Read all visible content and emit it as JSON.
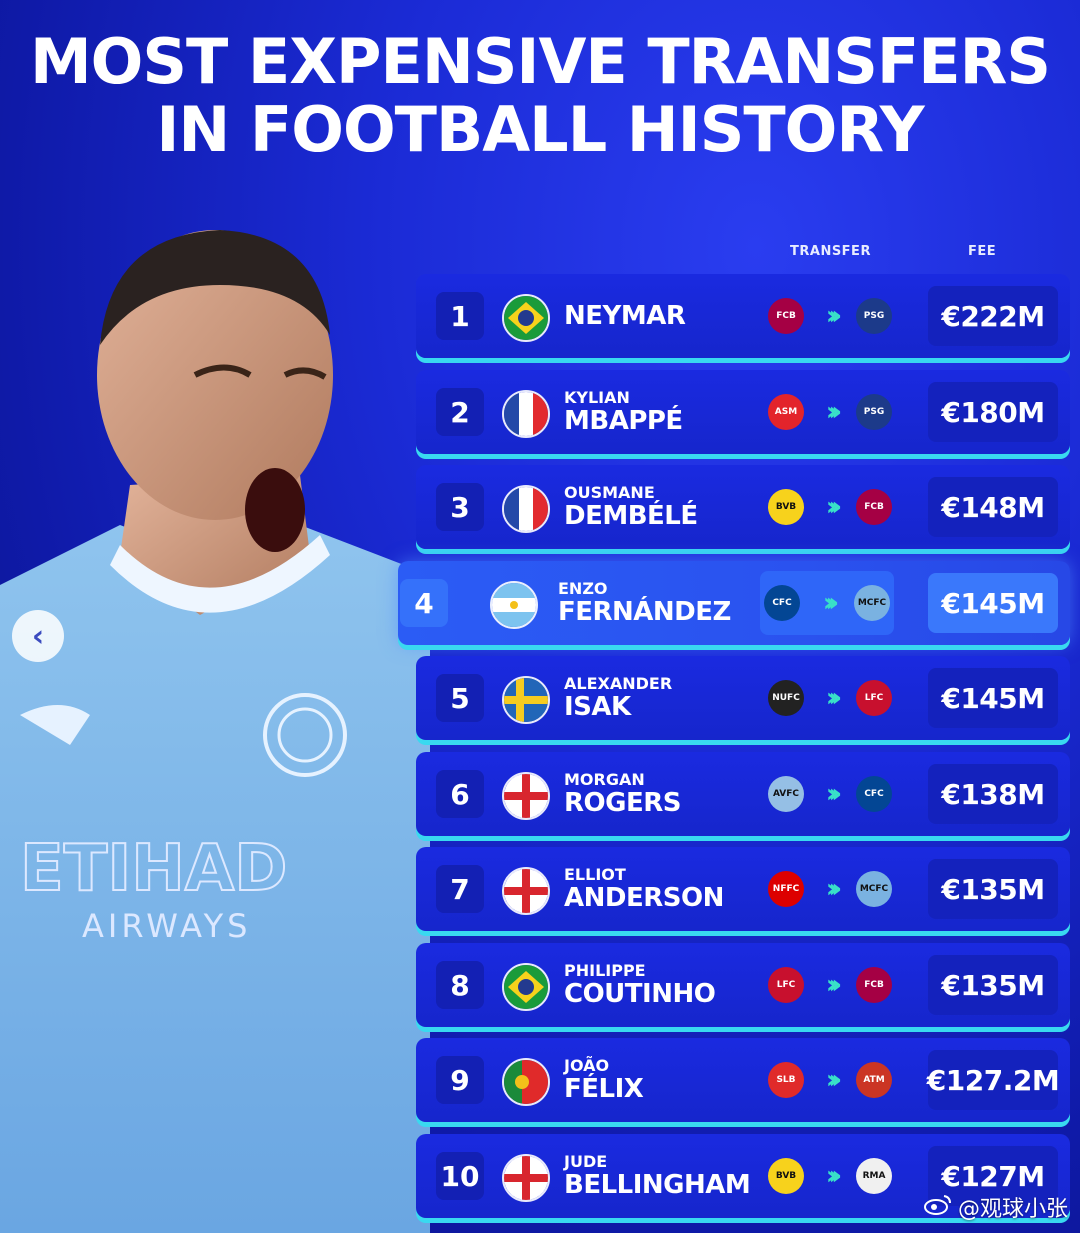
{
  "title": {
    "line1": "MOST EXPENSIVE TRANSFERS",
    "line2": "IN FOOTBALL HISTORY"
  },
  "columns": {
    "transfer": "TRANSFER",
    "fee": "FEE"
  },
  "sponsor": {
    "text": "ETIHAD",
    "sub": "AIRWAYS"
  },
  "accent": "#39d9f0",
  "rows": [
    {
      "rank": "1",
      "flag": "brazil",
      "first": "",
      "last": "NEYMAR",
      "from": "FCB",
      "to": "PSG",
      "fee": "€222M"
    },
    {
      "rank": "2",
      "flag": "france",
      "first": "KYLIAN",
      "last": "MBAPPÉ",
      "from": "ASM",
      "to": "PSG",
      "fee": "€180M"
    },
    {
      "rank": "3",
      "flag": "france",
      "first": "OUSMANE",
      "last": "DEMBÉLÉ",
      "from": "BVB",
      "to": "FCB",
      "fee": "€148M"
    },
    {
      "rank": "4",
      "flag": "argentina",
      "first": "ENZO",
      "last": "FERNÁNDEZ",
      "from": "CFC",
      "to": "MCFC",
      "fee": "€145M",
      "highlight": true
    },
    {
      "rank": "5",
      "flag": "sweden",
      "first": "ALEXANDER",
      "last": "ISAK",
      "from": "NUFC",
      "to": "LFC",
      "fee": "€145M"
    },
    {
      "rank": "6",
      "flag": "england",
      "first": "MORGAN",
      "last": "ROGERS",
      "from": "AVFC",
      "to": "CFC",
      "fee": "€138M"
    },
    {
      "rank": "7",
      "flag": "england",
      "first": "ELLIOT",
      "last": "ANDERSON",
      "from": "NFFC",
      "to": "MCFC",
      "fee": "€135M"
    },
    {
      "rank": "8",
      "flag": "brazil",
      "first": "PHILIPPE",
      "last": "COUTINHO",
      "from": "LFC",
      "to": "FCB",
      "fee": "€135M"
    },
    {
      "rank": "9",
      "flag": "portugal",
      "first": "JOÃO",
      "last": "FÉLIX",
      "from": "SLB",
      "to": "ATM",
      "fee": "€127.2M"
    },
    {
      "rank": "10",
      "flag": "england",
      "first": "JUDE",
      "last": "BELLINGHAM",
      "from": "BVB",
      "to": "RMA",
      "fee": "€127M"
    }
  ],
  "watermark": "@观球小张"
}
